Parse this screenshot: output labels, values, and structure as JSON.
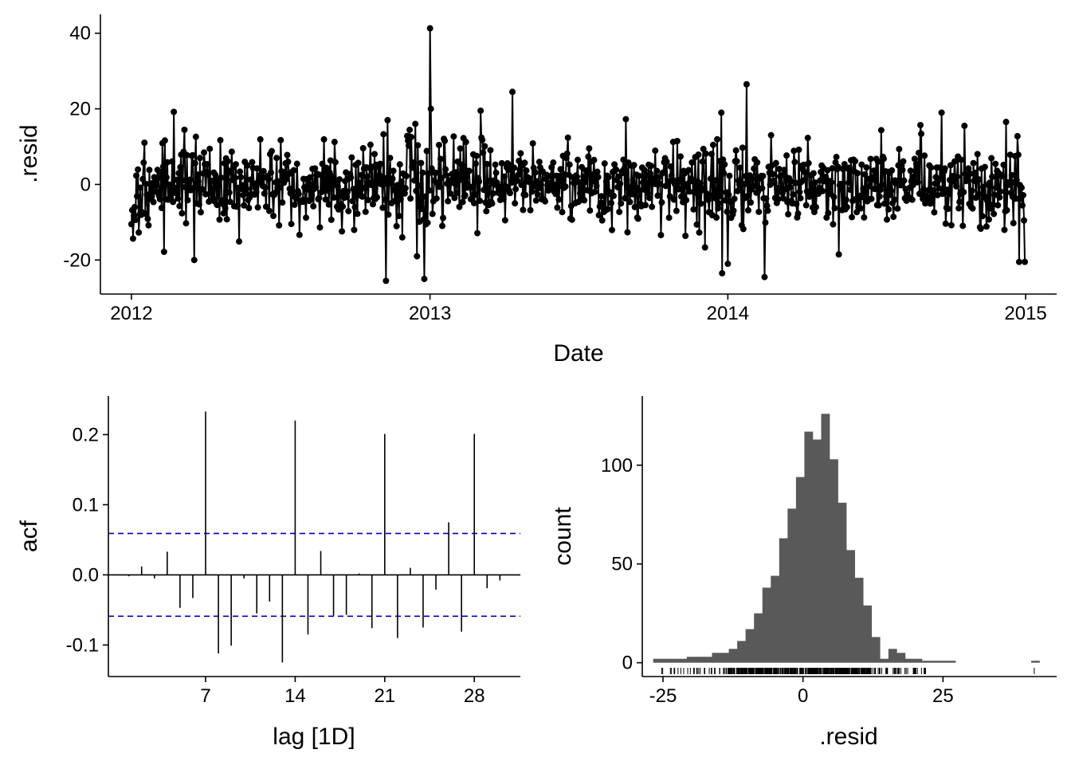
{
  "chart_data": [
    {
      "id": "resid-timeseries",
      "type": "line",
      "markers": true,
      "title": "",
      "xlabel": "Date",
      "ylabel": ".resid",
      "x_start": "2012-01-01",
      "x_end": "2014-12-31",
      "x_interval": "1 day",
      "xlim": [
        "2011-11-24",
        "2015-02-08"
      ],
      "ylim": [
        -29,
        45
      ],
      "x_ticks": [
        {
          "value": "2012-01-01",
          "label": "2012"
        },
        {
          "value": "2013-01-01",
          "label": "2013"
        },
        {
          "value": "2014-01-01",
          "label": "2014"
        },
        {
          "value": "2015-01-01",
          "label": "2015"
        }
      ],
      "y_ticks": [
        {
          "value": -20,
          "label": "-20"
        },
        {
          "value": 0,
          "label": "0"
        },
        {
          "value": 20,
          "label": "20"
        },
        {
          "value": 40,
          "label": "40"
        }
      ],
      "grid": false,
      "highlights": [
        {
          "date": "2012-01-01",
          "value": -10.5
        },
        {
          "date": "2012-02-22",
          "value": 19.2
        },
        {
          "date": "2012-03-18",
          "value": -20.0
        },
        {
          "date": "2012-11-08",
          "value": -25.5
        },
        {
          "date": "2012-11-10",
          "value": 17.0
        },
        {
          "date": "2012-12-25",
          "value": -25.0
        },
        {
          "date": "2013-01-01",
          "value": 41.3
        },
        {
          "date": "2013-01-02",
          "value": 20.0
        },
        {
          "date": "2013-04-12",
          "value": 24.5
        },
        {
          "date": "2013-03-04",
          "value": 19.5
        },
        {
          "date": "2013-12-25",
          "value": -23.5
        },
        {
          "date": "2014-01-01",
          "value": -21.0
        },
        {
          "date": "2014-01-24",
          "value": 26.5
        },
        {
          "date": "2014-02-15",
          "value": -24.5
        },
        {
          "date": "2014-10-18",
          "value": 15.5
        },
        {
          "date": "2014-12-24",
          "value": -20.5
        },
        {
          "date": "2014-12-31",
          "value": -20.5
        }
      ]
    },
    {
      "id": "acf",
      "type": "bar",
      "title": "",
      "xlabel": "lag [1D]",
      "ylabel": "acf",
      "xlim": [
        -0.6,
        31.6
      ],
      "ylim": [
        -0.145,
        0.255
      ],
      "x_ticks": [
        {
          "value": 7,
          "label": "7"
        },
        {
          "value": 14,
          "label": "14"
        },
        {
          "value": 21,
          "label": "21"
        },
        {
          "value": 28,
          "label": "28"
        }
      ],
      "y_ticks": [
        {
          "value": -0.1,
          "label": "-0.1"
        },
        {
          "value": 0.0,
          "label": "0.0"
        },
        {
          "value": 0.1,
          "label": "0.1"
        },
        {
          "value": 0.2,
          "label": "0.2"
        }
      ],
      "lags": [
        1,
        2,
        3,
        4,
        5,
        6,
        7,
        8,
        9,
        10,
        11,
        12,
        13,
        14,
        15,
        16,
        17,
        18,
        19,
        20,
        21,
        22,
        23,
        24,
        25,
        26,
        27,
        28,
        29,
        30
      ],
      "values": [
        -0.002,
        0.012,
        -0.005,
        0.033,
        -0.047,
        -0.033,
        0.233,
        -0.112,
        -0.101,
        -0.005,
        -0.055,
        -0.038,
        -0.125,
        0.22,
        -0.085,
        0.034,
        -0.058,
        -0.057,
        0.002,
        -0.076,
        0.201,
        -0.09,
        0.01,
        -0.075,
        -0.021,
        0.075,
        -0.081,
        0.201,
        -0.019,
        -0.008
      ],
      "confidence_band": 0.059,
      "confidence_color": "#0000cc",
      "grid": false
    },
    {
      "id": "resid-histogram",
      "type": "bar",
      "subtype": "histogram",
      "title": "",
      "xlabel": ".resid",
      "ylabel": "count",
      "xlim": [
        -28.7,
        45.3
      ],
      "ylim": [
        -7,
        135
      ],
      "x_ticks": [
        {
          "value": -25,
          "label": "-25"
        },
        {
          "value": 0,
          "label": "0"
        },
        {
          "value": 25,
          "label": "25"
        }
      ],
      "y_ticks": [
        {
          "value": 0,
          "label": "0"
        },
        {
          "value": 50,
          "label": "50"
        },
        {
          "value": 100,
          "label": "100"
        }
      ],
      "bin_width": 1.5,
      "bins": [
        [
          -26,
          2
        ],
        [
          -24.5,
          2
        ],
        [
          -23,
          2
        ],
        [
          -21.5,
          2
        ],
        [
          -20,
          3
        ],
        [
          -18.5,
          3
        ],
        [
          -17,
          3
        ],
        [
          -15.5,
          5
        ],
        [
          -14,
          5
        ],
        [
          -12.5,
          7
        ],
        [
          -11,
          11
        ],
        [
          -9.5,
          17
        ],
        [
          -8,
          25
        ],
        [
          -6.5,
          38
        ],
        [
          -5,
          44
        ],
        [
          -3.5,
          63
        ],
        [
          -2,
          78
        ],
        [
          -0.5,
          94
        ],
        [
          1,
          117
        ],
        [
          2.5,
          113
        ],
        [
          4,
          126
        ],
        [
          5.5,
          103
        ],
        [
          7,
          81
        ],
        [
          8.5,
          57
        ],
        [
          10,
          43
        ],
        [
          11.5,
          29
        ],
        [
          13,
          13
        ],
        [
          14.5,
          2
        ],
        [
          16,
          7
        ],
        [
          17.5,
          5
        ],
        [
          19,
          2
        ],
        [
          20.5,
          2
        ],
        [
          22,
          1
        ],
        [
          23.5,
          1
        ],
        [
          25,
          1
        ],
        [
          26.5,
          1
        ],
        [
          41.5,
          1
        ]
      ],
      "bar_color": "#595959",
      "rug": true,
      "rug_range": [
        -25.5,
        41.3
      ],
      "rug_dense_range": [
        -13.5,
        13
      ],
      "grid": false
    }
  ]
}
